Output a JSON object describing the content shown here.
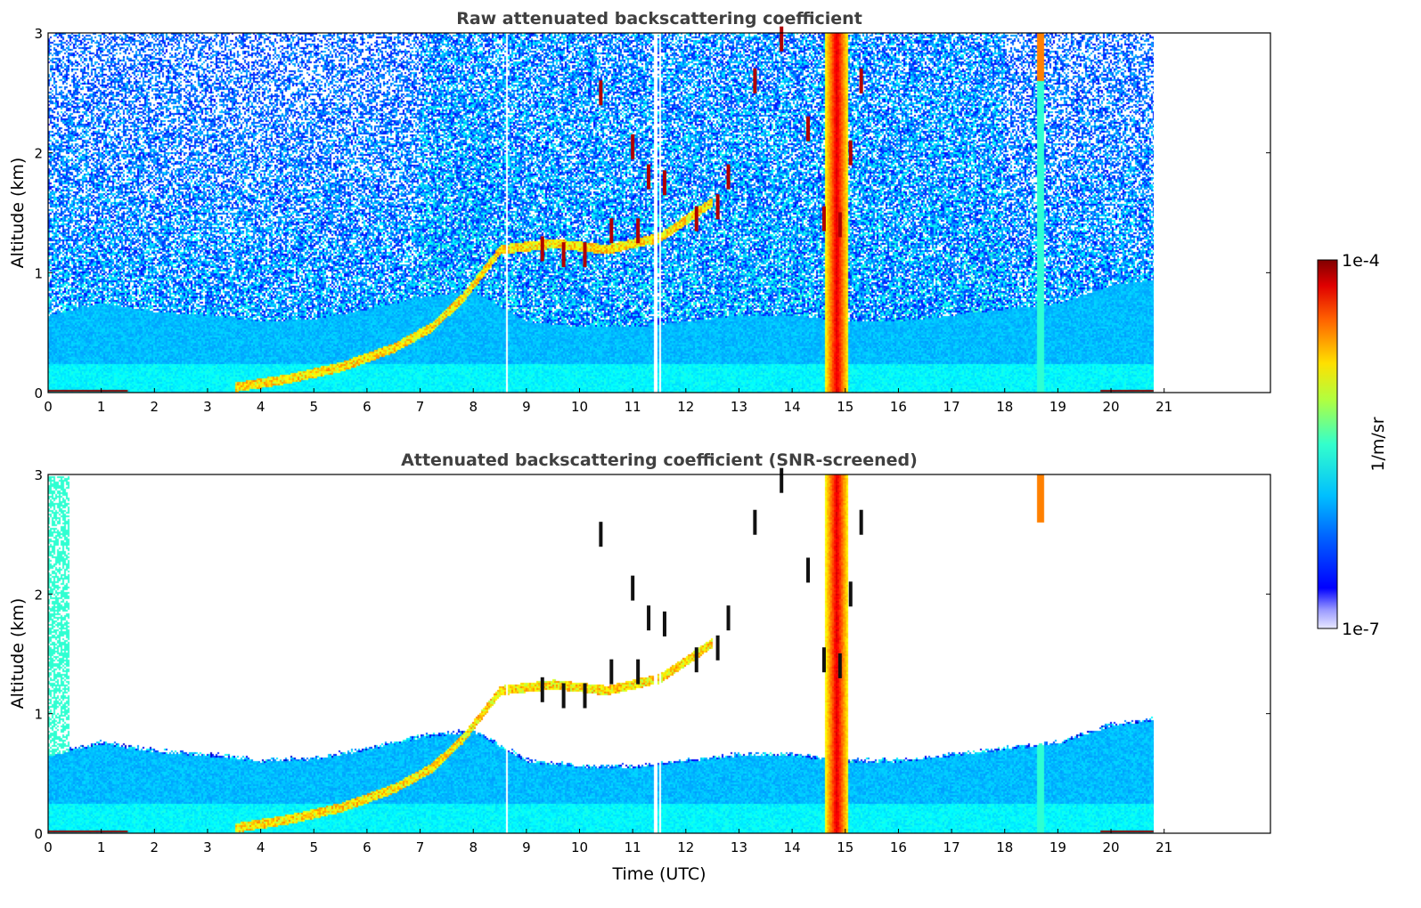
{
  "chart_data": [
    {
      "type": "heatmap",
      "title": "Raw attenuated backscattering coefficient",
      "xlabel": "",
      "ylabel": "Altitude (km)",
      "xlim": [
        0,
        23
      ],
      "ylim": [
        0,
        3
      ],
      "data_extent_x": [
        0,
        20.8
      ],
      "x_ticks": [
        "0",
        "1",
        "2",
        "3",
        "4",
        "5",
        "6",
        "7",
        "8",
        "9",
        "10",
        "11",
        "12",
        "13",
        "14",
        "15",
        "16",
        "17",
        "18",
        "19",
        "20",
        "21"
      ],
      "y_ticks": [
        "0",
        "1",
        "2",
        "3"
      ],
      "screened": false
    },
    {
      "type": "heatmap",
      "title": "Attenuated backscattering coefficient (SNR-screened)",
      "xlabel": "Time (UTC)",
      "ylabel": "Altitude (km)",
      "xlim": [
        0,
        23
      ],
      "ylim": [
        0,
        3
      ],
      "data_extent_x": [
        0,
        20.8
      ],
      "x_ticks": [
        "0",
        "1",
        "2",
        "3",
        "4",
        "5",
        "6",
        "7",
        "8",
        "9",
        "10",
        "11",
        "12",
        "13",
        "14",
        "15",
        "16",
        "17",
        "18",
        "19",
        "20",
        "21"
      ],
      "y_ticks": [
        "0",
        "1",
        "2",
        "3"
      ],
      "screened": true
    }
  ],
  "colorbar": {
    "label": "1/m/sr",
    "max_label": "1e-4",
    "min_label": "1e-7",
    "scale": "log",
    "colormap": "jet"
  },
  "features": {
    "boundary_layer": [
      [
        0,
        0.65
      ],
      [
        1,
        0.75
      ],
      [
        2,
        0.68
      ],
      [
        3,
        0.65
      ],
      [
        4,
        0.6
      ],
      [
        5,
        0.62
      ],
      [
        6,
        0.7
      ],
      [
        7,
        0.8
      ],
      [
        8,
        0.85
      ],
      [
        9,
        0.6
      ],
      [
        10,
        0.55
      ],
      [
        11,
        0.55
      ],
      [
        12,
        0.6
      ],
      [
        13,
        0.65
      ],
      [
        14,
        0.65
      ],
      [
        15,
        0.6
      ],
      [
        16,
        0.6
      ],
      [
        17,
        0.65
      ],
      [
        18,
        0.7
      ],
      [
        19,
        0.75
      ],
      [
        20,
        0.9
      ],
      [
        20.8,
        0.95
      ]
    ],
    "rising_layer": [
      [
        3.5,
        0.05
      ],
      [
        4.5,
        0.12
      ],
      [
        5.5,
        0.22
      ],
      [
        6.5,
        0.38
      ],
      [
        7.2,
        0.55
      ],
      [
        7.8,
        0.8
      ],
      [
        8.5,
        1.2
      ],
      [
        9.5,
        1.25
      ],
      [
        10.5,
        1.2
      ],
      [
        11.5,
        1.3
      ],
      [
        12.5,
        1.6
      ]
    ],
    "cloud_column": {
      "t_start": 14.6,
      "t_end": 15.05
    },
    "rain_column": {
      "t": 18.65
    },
    "gaps": [
      8.62,
      11.42,
      11.5
    ],
    "cloud_fragments": [
      [
        9.3,
        1.2
      ],
      [
        9.7,
        1.15
      ],
      [
        10.1,
        1.15
      ],
      [
        10.6,
        1.35
      ],
      [
        11.1,
        1.35
      ],
      [
        11.3,
        1.8
      ],
      [
        11.6,
        1.75
      ],
      [
        12.2,
        1.45
      ],
      [
        12.6,
        1.55
      ],
      [
        12.8,
        1.8
      ],
      [
        13.3,
        2.6
      ],
      [
        13.8,
        2.95
      ],
      [
        14.3,
        2.2
      ],
      [
        14.6,
        1.45
      ],
      [
        14.9,
        1.4
      ],
      [
        15.1,
        2.0
      ],
      [
        15.3,
        2.6
      ],
      [
        11.0,
        2.05
      ],
      [
        10.4,
        2.5
      ]
    ]
  },
  "colors": {
    "axis": "#000000",
    "title": "#404040"
  }
}
